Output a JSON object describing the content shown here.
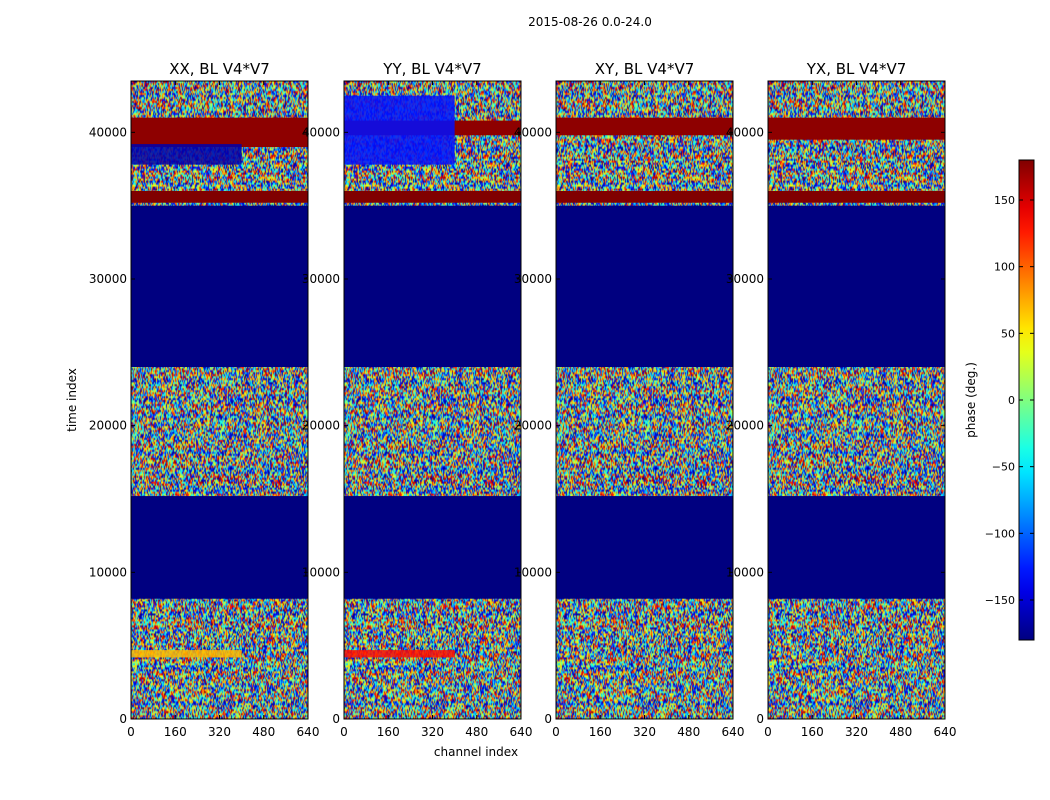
{
  "figure": {
    "suptitle": "2015-08-26 0.0-24.0"
  },
  "colors": {
    "band_blue": "#000080",
    "band_dark_red": "#800000",
    "band_yellow": "#ffd200"
  },
  "colormap": "jet",
  "chart_data": {
    "type": "heatmap",
    "title": "2015-08-26 0.0-24.0",
    "xlabel": "channel index",
    "ylabel": "time index",
    "xlim": [
      0,
      640
    ],
    "ylim": [
      0,
      43500
    ],
    "xticks": [
      0,
      160,
      320,
      480,
      640
    ],
    "xtick_labels": [
      "0",
      "160",
      "320",
      "480",
      "640"
    ],
    "yticks": [
      0,
      10000,
      20000,
      30000,
      40000
    ],
    "ytick_labels": [
      "0",
      "10000",
      "20000",
      "30000",
      "40000"
    ],
    "colorbar": {
      "label": "phase (deg.)",
      "range": [
        -180,
        180
      ],
      "ticks": [
        150,
        100,
        50,
        0,
        -50,
        -100,
        -150
      ],
      "tick_labels": [
        "150",
        "100",
        "50",
        "0",
        "−50",
        "−100",
        "−150"
      ]
    },
    "panels": [
      {
        "name": "XX",
        "title": "XX, BL V4*V7",
        "uniform_regions": [
          {
            "t0": 8200,
            "t1": 15200,
            "phase": -180
          },
          {
            "t0": 24000,
            "t1": 35000,
            "phase": -180
          },
          {
            "t0": 35200,
            "t1": 36000,
            "phase": 180
          },
          {
            "t0": 39000,
            "t1": 41000,
            "phase": 175
          }
        ],
        "features": [
          {
            "t0": 4200,
            "t1": 4700,
            "ch0": 0,
            "ch1": 400,
            "phase": 70
          },
          {
            "t0": 37800,
            "t1": 39200,
            "ch0": 0,
            "ch1": 400,
            "phase": -165
          }
        ]
      },
      {
        "name": "YY",
        "title": "YY, BL V4*V7",
        "uniform_regions": [
          {
            "t0": 8200,
            "t1": 15200,
            "phase": -180
          },
          {
            "t0": 24000,
            "t1": 35000,
            "phase": -180
          },
          {
            "t0": 35200,
            "t1": 36000,
            "phase": 180
          },
          {
            "t0": 39800,
            "t1": 40800,
            "phase": 175
          }
        ],
        "features": [
          {
            "t0": 4200,
            "t1": 4700,
            "ch0": 0,
            "ch1": 400,
            "phase": 130
          },
          {
            "t0": 37800,
            "t1": 42500,
            "ch0": 0,
            "ch1": 400,
            "phase": -130
          }
        ]
      },
      {
        "name": "XY",
        "title": "XY, BL V4*V7",
        "uniform_regions": [
          {
            "t0": 8200,
            "t1": 15200,
            "phase": -180
          },
          {
            "t0": 24000,
            "t1": 35000,
            "phase": -180
          },
          {
            "t0": 35200,
            "t1": 36000,
            "phase": 180
          },
          {
            "t0": 39800,
            "t1": 41000,
            "phase": 175
          }
        ],
        "features": []
      },
      {
        "name": "YX",
        "title": "YX, BL V4*V7",
        "uniform_regions": [
          {
            "t0": 8200,
            "t1": 15200,
            "phase": -180
          },
          {
            "t0": 24000,
            "t1": 35000,
            "phase": -180
          },
          {
            "t0": 35200,
            "t1": 36000,
            "phase": 180
          },
          {
            "t0": 39500,
            "t1": 41000,
            "phase": 175
          }
        ],
        "features": []
      }
    ]
  }
}
